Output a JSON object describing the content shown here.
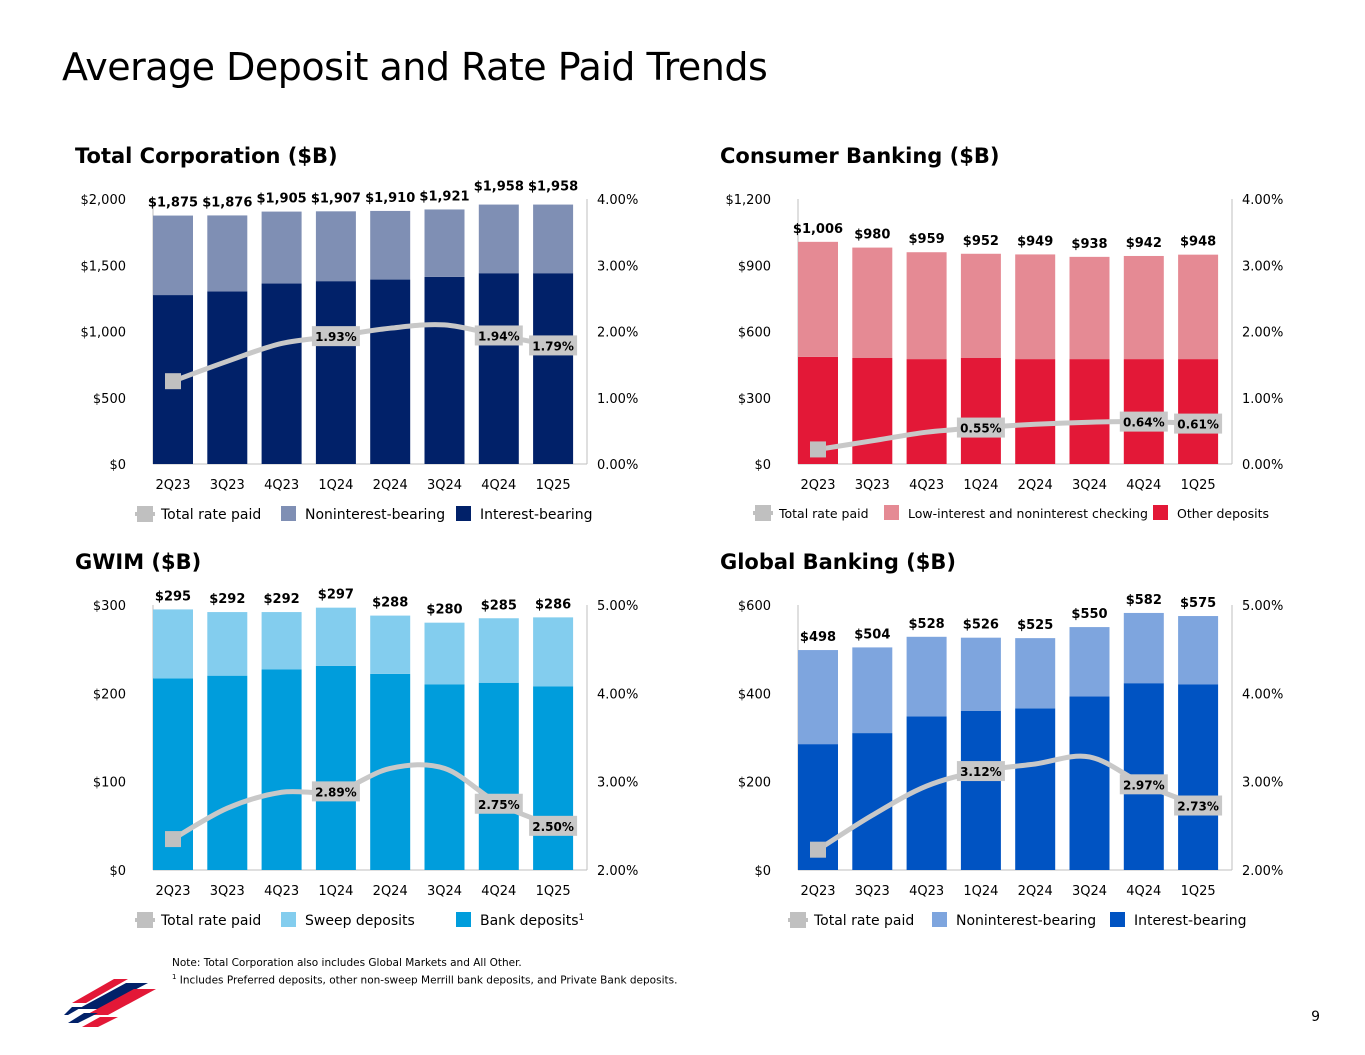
{
  "page": {
    "title": "Average Deposit and Rate Paid Trends",
    "page_number": "9",
    "note_1": "Note: Total Corporation also includes Global Markets and All Other.",
    "note_2_marker": "1",
    "note_2": " Includes Preferred deposits, other non-sweep Merrill bank deposits, and Private Bank deposits."
  },
  "chart_data": [
    {
      "id": "total-corp",
      "type": "bar",
      "title": "Total Corporation ($B)",
      "stacked": true,
      "categories": [
        "2Q23",
        "3Q23",
        "4Q23",
        "1Q24",
        "2Q24",
        "3Q24",
        "4Q24",
        "1Q25"
      ],
      "y_left": {
        "min": 0,
        "max": 2000,
        "ticks": [
          0,
          500,
          1000,
          1500,
          2000
        ],
        "tick_labels": [
          "$0",
          "$500",
          "$1,000",
          "$1,500",
          "$2,000"
        ]
      },
      "y_right": {
        "min": 0,
        "max": 4,
        "ticks": [
          0,
          1,
          2,
          3,
          4
        ],
        "tick_labels": [
          "0.00%",
          "1.00%",
          "2.00%",
          "3.00%",
          "4.00%"
        ]
      },
      "series": [
        {
          "name": "Interest-bearing",
          "color": "#012169",
          "values": [
            1275,
            1303,
            1362,
            1380,
            1392,
            1412,
            1440,
            1440
          ]
        },
        {
          "name": "Noninterest-bearing",
          "color": "#7f8fb4",
          "values": [
            600,
            573,
            543,
            527,
            518,
            509,
            518,
            518
          ]
        }
      ],
      "totals": [
        "$1,875",
        "$1,876",
        "$1,905",
        "$1,907",
        "$1,910",
        "$1,921",
        "$1,958",
        "$1,958"
      ],
      "total_offsets": [
        0,
        0,
        0,
        0,
        0,
        0,
        5,
        5
      ],
      "rate_series": {
        "name": "Total rate paid",
        "values": [
          1.25,
          1.55,
          1.82,
          1.93,
          2.05,
          2.1,
          1.94,
          1.79
        ]
      },
      "rate_labels": [
        {
          "index": 3,
          "text": "1.93%"
        },
        {
          "index": 6,
          "text": "1.94%"
        },
        {
          "index": 7,
          "text": "1.79%"
        }
      ],
      "legend": [
        {
          "label": "Total rate paid",
          "kind": "line",
          "color": "#c0c0c0"
        },
        {
          "label": "Noninterest-bearing",
          "kind": "box",
          "color": "#7f8fb4"
        },
        {
          "label": "Interest-bearing",
          "kind": "box",
          "color": "#012169"
        }
      ]
    },
    {
      "id": "consumer",
      "type": "bar",
      "title": "Consumer Banking ($B)",
      "stacked": true,
      "categories": [
        "2Q23",
        "3Q23",
        "4Q23",
        "1Q24",
        "2Q24",
        "3Q24",
        "4Q24",
        "1Q25"
      ],
      "y_left": {
        "min": 0,
        "max": 1200,
        "ticks": [
          0,
          300,
          600,
          900,
          1200
        ],
        "tick_labels": [
          "$0",
          "$300",
          "$600",
          "$900",
          "$1,200"
        ]
      },
      "y_right": {
        "min": 0,
        "max": 4,
        "ticks": [
          0,
          1,
          2,
          3,
          4
        ],
        "tick_labels": [
          "0.00%",
          "1.00%",
          "2.00%",
          "3.00%",
          "4.00%"
        ]
      },
      "series": [
        {
          "name": "Other deposits",
          "color": "#e31837",
          "values": [
            485,
            480,
            475,
            480,
            475,
            475,
            475,
            475
          ]
        },
        {
          "name": "Low-interest and noninterest checking",
          "color": "#e58a94",
          "values": [
            521,
            500,
            484,
            472,
            474,
            463,
            467,
            473
          ]
        }
      ],
      "totals": [
        "$1,006",
        "$980",
        "$959",
        "$952",
        "$949",
        "$938",
        "$942",
        "$948"
      ],
      "total_offsets": [
        0,
        0,
        0,
        0,
        0,
        0,
        0,
        0
      ],
      "rate_series": {
        "name": "Total rate paid",
        "values": [
          0.22,
          0.35,
          0.48,
          0.55,
          0.6,
          0.63,
          0.64,
          0.61
        ]
      },
      "rate_labels": [
        {
          "index": 3,
          "text": "0.55%"
        },
        {
          "index": 6,
          "text": "0.64%"
        },
        {
          "index": 7,
          "text": "0.61%"
        }
      ],
      "legend": [
        {
          "label": "Total rate paid",
          "kind": "line",
          "color": "#c0c0c0"
        },
        {
          "label": "Low-interest and noninterest checking",
          "kind": "box",
          "color": "#e58a94"
        },
        {
          "label": "Other deposits",
          "kind": "box",
          "color": "#e31837"
        }
      ]
    },
    {
      "id": "gwim",
      "type": "bar",
      "title": "GWIM ($B)",
      "stacked": true,
      "categories": [
        "2Q23",
        "3Q23",
        "4Q23",
        "1Q24",
        "2Q24",
        "3Q24",
        "4Q24",
        "1Q25"
      ],
      "y_left": {
        "min": 0,
        "max": 300,
        "ticks": [
          0,
          100,
          200,
          300
        ],
        "tick_labels": [
          "$0",
          "$100",
          "$200",
          "$300"
        ]
      },
      "y_right": {
        "min": 2,
        "max": 5,
        "ticks": [
          2,
          3,
          4,
          5
        ],
        "tick_labels": [
          "2.00%",
          "3.00%",
          "4.00%",
          "5.00%"
        ]
      },
      "series": [
        {
          "name": "Bank deposits",
          "color": "#009ddc",
          "values": [
            217,
            220,
            227,
            231,
            222,
            210,
            212,
            208
          ]
        },
        {
          "name": "Sweep deposits",
          "color": "#83cdee",
          "values": [
            78,
            72,
            65,
            66,
            66,
            70,
            73,
            78
          ]
        }
      ],
      "totals": [
        "$295",
        "$292",
        "$292",
        "$297",
        "$288",
        "$280",
        "$285",
        "$286"
      ],
      "total_offsets": [
        0,
        0,
        0,
        0,
        0,
        0,
        0,
        0
      ],
      "rate_series": {
        "name": "Total rate paid",
        "values": [
          2.35,
          2.7,
          2.88,
          2.89,
          3.15,
          3.15,
          2.75,
          2.5
        ]
      },
      "rate_labels": [
        {
          "index": 3,
          "text": "2.89%"
        },
        {
          "index": 6,
          "text": "2.75%"
        },
        {
          "index": 7,
          "text": "2.50%"
        }
      ],
      "legend": [
        {
          "label": "Total rate paid",
          "kind": "line",
          "color": "#c0c0c0"
        },
        {
          "label": "Sweep deposits",
          "kind": "box",
          "color": "#83cdee"
        },
        {
          "label": "Bank deposits",
          "kind": "box",
          "color": "#009ddc",
          "superscript": "1"
        }
      ]
    },
    {
      "id": "global",
      "type": "bar",
      "title": "Global Banking ($B)",
      "stacked": true,
      "categories": [
        "2Q23",
        "3Q23",
        "4Q23",
        "1Q24",
        "2Q24",
        "3Q24",
        "4Q24",
        "1Q25"
      ],
      "y_left": {
        "min": 0,
        "max": 600,
        "ticks": [
          0,
          200,
          400,
          600
        ],
        "tick_labels": [
          "$0",
          "$200",
          "$400",
          "$600"
        ]
      },
      "y_right": {
        "min": 2,
        "max": 5,
        "ticks": [
          2,
          3,
          4,
          5
        ],
        "tick_labels": [
          "2.00%",
          "3.00%",
          "4.00%",
          "5.00%"
        ]
      },
      "series": [
        {
          "name": "Interest-bearing",
          "color": "#0053c2",
          "values": [
            285,
            310,
            348,
            360,
            366,
            393,
            423,
            420
          ]
        },
        {
          "name": "Noninterest-bearing",
          "color": "#7ea5de",
          "values": [
            213,
            194,
            180,
            166,
            159,
            157,
            159,
            155
          ]
        }
      ],
      "totals": [
        "$498",
        "$504",
        "$528",
        "$526",
        "$525",
        "$550",
        "$582",
        "$575"
      ],
      "total_offsets": [
        0,
        0,
        0,
        0,
        0,
        0,
        0,
        0
      ],
      "rate_series": {
        "name": "Total rate paid",
        "values": [
          2.23,
          2.62,
          2.95,
          3.12,
          3.2,
          3.28,
          2.97,
          2.73
        ]
      },
      "rate_labels": [
        {
          "index": 3,
          "text": "3.12%"
        },
        {
          "index": 6,
          "text": "2.97%"
        },
        {
          "index": 7,
          "text": "2.73%"
        }
      ],
      "legend": [
        {
          "label": "Total rate paid",
          "kind": "line",
          "color": "#c0c0c0"
        },
        {
          "label": "Noninterest-bearing",
          "kind": "box",
          "color": "#7ea5de"
        },
        {
          "label": "Interest-bearing",
          "kind": "box",
          "color": "#0053c2"
        }
      ]
    }
  ]
}
